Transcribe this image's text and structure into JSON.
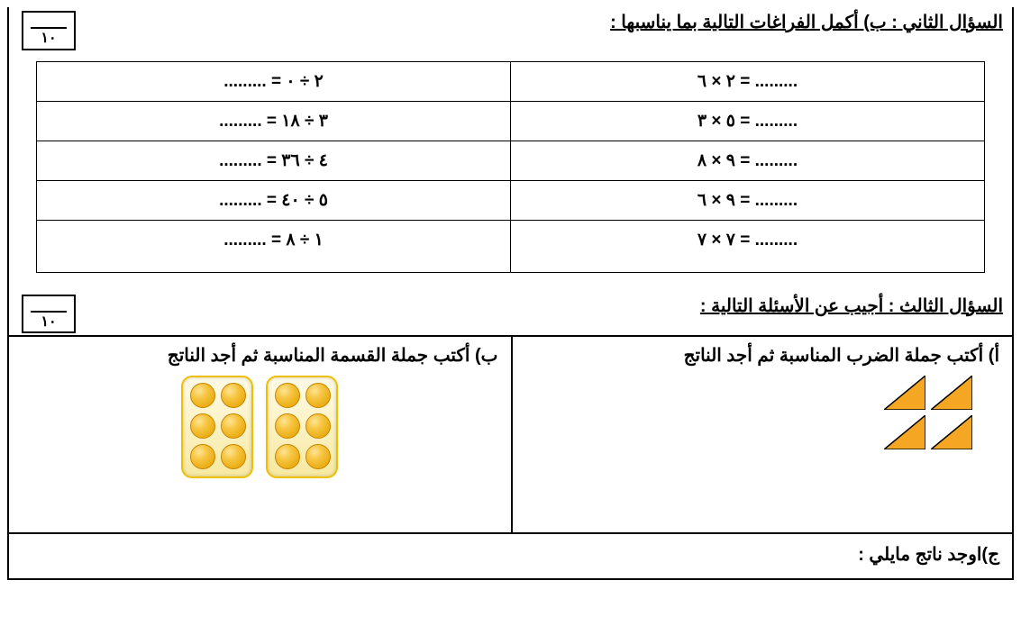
{
  "q2": {
    "title": "السؤال الثاني : ب) أكمل الفراغات التالية بما يناسبها :",
    "score_denom": "١٠",
    "rows": [
      {
        "right": "٢ × ٦ = .........",
        "left": "......... = ٢ ÷ ٠"
      },
      {
        "right": "٥ × ٣ = .........",
        "left": "......... = ٣ ÷ ١٨"
      },
      {
        "right": "٩ × ٨ = .........",
        "left": "......... = ٤ ÷ ٣٦"
      },
      {
        "right": "٩ × ٦ = .........",
        "left": "......... = ٥ ÷ ٤٠"
      },
      {
        "right": "٧ × ٧ = .........",
        "left": "......... = ١ ÷ ٨"
      }
    ]
  },
  "q3": {
    "title": "السؤال الثالث : أجيب عن الأسئلة التالية :",
    "score_denom": "١٠",
    "a_title": "أ) أكتب جملة الضرب المناسبة ثم أجد الناتج",
    "b_title": "ب) أكتب جملة القسمة المناسبة ثم أجد الناتج",
    "c_title": "ج)اوجد ناتج مايلي :",
    "triangles": {
      "count": 4,
      "fill": "#f5a623",
      "stroke": "#000000"
    },
    "plates": {
      "plate_count": 2,
      "oranges_per_plate": 6
    }
  },
  "colors": {
    "border": "#000000",
    "triangle_fill": "#f5a623",
    "orange_fill": "#f6c542",
    "plate_border": "#f0c000"
  }
}
